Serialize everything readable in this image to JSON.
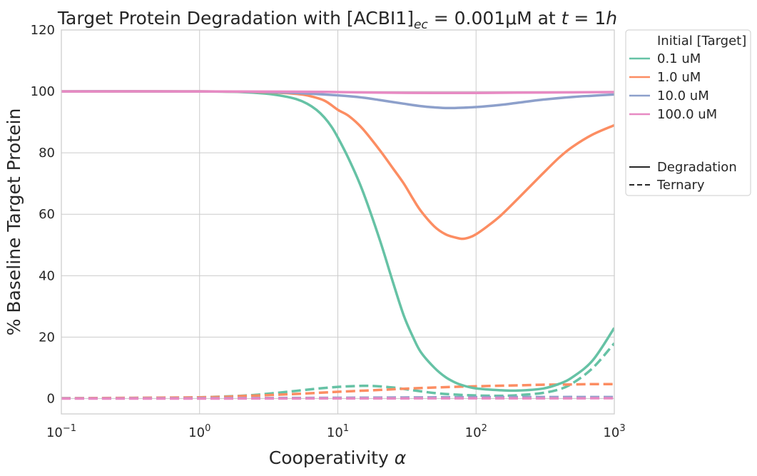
{
  "chart_data": {
    "type": "line",
    "title": "Target Protein Degradation with [ACBI1]",
    "title_subscript": "ec",
    "title_value": " = 0.001μM at ",
    "title_t_var": "t",
    "title_t_value": " = 1",
    "title_t_unit": "h",
    "xlabel": "Cooperativity",
    "xlabel_symbol": "α",
    "ylabel": "% Baseline Target Protein",
    "x_scale": "log",
    "xlim": [
      0.1,
      1000
    ],
    "ylim": [
      -5,
      120
    ],
    "x_ticks": [
      {
        "value": 0.1,
        "base": "10",
        "exp": "−1"
      },
      {
        "value": 1,
        "base": "10",
        "exp": "0"
      },
      {
        "value": 10,
        "base": "10",
        "exp": "1"
      },
      {
        "value": 100,
        "base": "10",
        "exp": "2"
      },
      {
        "value": 1000,
        "base": "10",
        "exp": "3"
      }
    ],
    "y_ticks": [
      0,
      20,
      40,
      60,
      80,
      100,
      120
    ],
    "grid": true,
    "legend": {
      "placement": "outside-top-right",
      "title": "Initial [Target]",
      "style_entries": [
        {
          "label": "Degradation",
          "dash": "solid"
        },
        {
          "label": "Ternary",
          "dash": "dashed"
        }
      ]
    },
    "series": [
      {
        "name": "0.1 uM",
        "color": "#66c2a5",
        "degradation": [
          [
            0.1,
            100
          ],
          [
            1,
            100
          ],
          [
            2,
            99.8
          ],
          [
            3,
            99.3
          ],
          [
            4,
            98.5
          ],
          [
            5,
            97.5
          ],
          [
            6,
            96
          ],
          [
            7,
            94
          ],
          [
            8,
            91.5
          ],
          [
            9,
            88.5
          ],
          [
            10,
            85
          ],
          [
            12,
            78
          ],
          [
            15,
            68
          ],
          [
            20,
            52
          ],
          [
            25,
            38
          ],
          [
            30,
            27
          ],
          [
            35,
            20
          ],
          [
            40,
            15
          ],
          [
            50,
            10
          ],
          [
            60,
            7
          ],
          [
            70,
            5.3
          ],
          [
            80,
            4.3
          ],
          [
            100,
            3.3
          ],
          [
            150,
            2.7
          ],
          [
            200,
            2.6
          ],
          [
            300,
            3.2
          ],
          [
            400,
            4.8
          ],
          [
            500,
            7
          ],
          [
            700,
            12.5
          ],
          [
            1000,
            23
          ]
        ],
        "ternary": [
          [
            0.1,
            0.1
          ],
          [
            0.5,
            0.2
          ],
          [
            1,
            0.4
          ],
          [
            2,
            0.9
          ],
          [
            3,
            1.5
          ],
          [
            5,
            2.5
          ],
          [
            7,
            3.2
          ],
          [
            10,
            3.8
          ],
          [
            14,
            4.1
          ],
          [
            18,
            4.1
          ],
          [
            25,
            3.6
          ],
          [
            35,
            2.7
          ],
          [
            50,
            1.8
          ],
          [
            70,
            1.3
          ],
          [
            100,
            1
          ],
          [
            150,
            0.9
          ],
          [
            200,
            1.1
          ],
          [
            300,
            1.8
          ],
          [
            400,
            3
          ],
          [
            500,
            5
          ],
          [
            700,
            10
          ],
          [
            1000,
            18
          ]
        ]
      },
      {
        "name": "1.0 uM",
        "color": "#fc8d62",
        "degradation": [
          [
            0.1,
            100
          ],
          [
            1,
            100
          ],
          [
            2,
            99.9
          ],
          [
            3,
            99.7
          ],
          [
            4,
            99.5
          ],
          [
            5,
            99.2
          ],
          [
            6,
            98.7
          ],
          [
            8,
            97
          ],
          [
            10,
            94
          ],
          [
            12,
            92
          ],
          [
            15,
            88
          ],
          [
            20,
            81
          ],
          [
            25,
            75
          ],
          [
            30,
            70
          ],
          [
            35,
            65
          ],
          [
            40,
            61
          ],
          [
            50,
            56
          ],
          [
            60,
            53.5
          ],
          [
            70,
            52.5
          ],
          [
            80,
            52
          ],
          [
            90,
            52.5
          ],
          [
            100,
            53.5
          ],
          [
            120,
            56
          ],
          [
            150,
            59.5
          ],
          [
            200,
            65
          ],
          [
            300,
            73
          ],
          [
            400,
            78.5
          ],
          [
            500,
            82
          ],
          [
            700,
            86
          ],
          [
            1000,
            89
          ]
        ],
        "ternary": [
          [
            0.1,
            0.1
          ],
          [
            1,
            0.4
          ],
          [
            2,
            0.8
          ],
          [
            5,
            1.5
          ],
          [
            10,
            2.2
          ],
          [
            20,
            2.8
          ],
          [
            30,
            3.2
          ],
          [
            50,
            3.6
          ],
          [
            100,
            4
          ],
          [
            200,
            4.3
          ],
          [
            300,
            4.5
          ],
          [
            500,
            4.6
          ],
          [
            700,
            4.7
          ],
          [
            1000,
            4.7
          ]
        ]
      },
      {
        "name": "10.0 uM",
        "color": "#8da0cb",
        "degradation": [
          [
            0.1,
            100
          ],
          [
            1,
            100
          ],
          [
            3,
            99.8
          ],
          [
            5,
            99.5
          ],
          [
            10,
            98.7
          ],
          [
            15,
            98
          ],
          [
            20,
            97.2
          ],
          [
            30,
            96
          ],
          [
            40,
            95.2
          ],
          [
            50,
            94.8
          ],
          [
            60,
            94.6
          ],
          [
            70,
            94.6
          ],
          [
            100,
            94.9
          ],
          [
            150,
            95.6
          ],
          [
            200,
            96.3
          ],
          [
            300,
            97.3
          ],
          [
            500,
            98.2
          ],
          [
            700,
            98.6
          ],
          [
            1000,
            99
          ]
        ],
        "ternary": [
          [
            0.1,
            0.05
          ],
          [
            1,
            0.1
          ],
          [
            10,
            0.25
          ],
          [
            30,
            0.35
          ],
          [
            100,
            0.45
          ],
          [
            300,
            0.5
          ],
          [
            1000,
            0.5
          ]
        ]
      },
      {
        "name": "100.0 uM",
        "color": "#e78ac3",
        "degradation": [
          [
            0.1,
            100
          ],
          [
            1,
            100
          ],
          [
            5,
            99.9
          ],
          [
            10,
            99.8
          ],
          [
            20,
            99.6
          ],
          [
            50,
            99.5
          ],
          [
            100,
            99.5
          ],
          [
            200,
            99.6
          ],
          [
            500,
            99.7
          ],
          [
            1000,
            99.8
          ]
        ],
        "ternary": [
          [
            0.1,
            0
          ],
          [
            1,
            0
          ],
          [
            10,
            0.05
          ],
          [
            100,
            0.08
          ],
          [
            1000,
            0.1
          ]
        ]
      }
    ]
  }
}
